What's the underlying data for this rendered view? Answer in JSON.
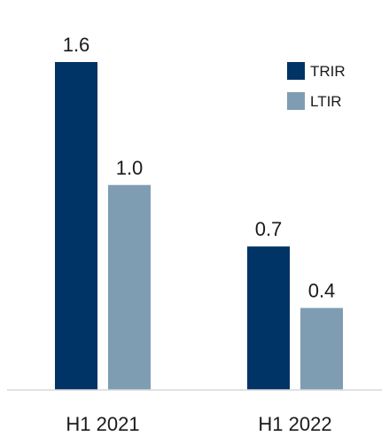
{
  "chart_data": {
    "type": "bar",
    "categories": [
      "H1 2021",
      "H1 2022"
    ],
    "series": [
      {
        "name": "TRIR",
        "values": [
          1.6,
          0.7
        ],
        "labels": [
          "1.6",
          "0.7"
        ],
        "color": "#003366"
      },
      {
        "name": "LTIR",
        "values": [
          1.0,
          0.4
        ],
        "labels": [
          "1.0",
          "0.4"
        ],
        "color": "#7F9DB2"
      }
    ],
    "ylim": [
      0,
      1.6
    ],
    "grid": false,
    "legend_position": "top-right"
  }
}
